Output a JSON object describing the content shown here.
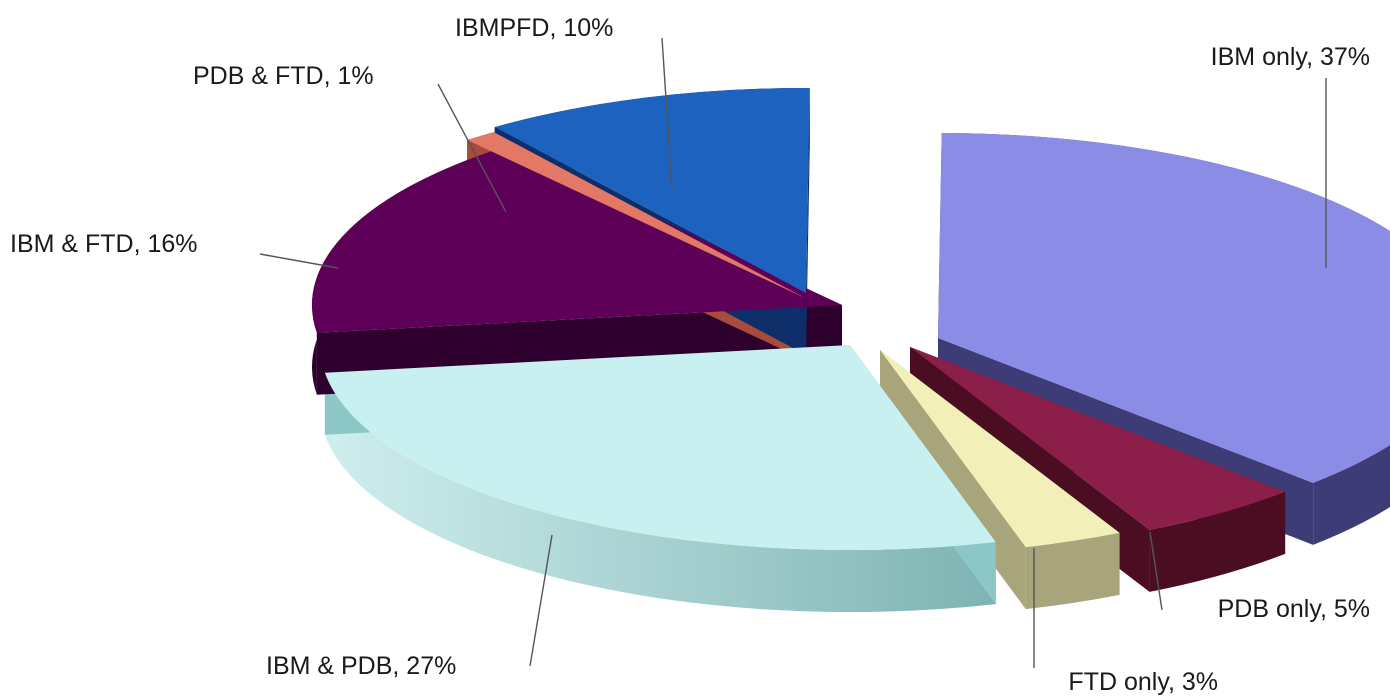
{
  "chart_data": {
    "type": "pie",
    "style": "3d-exploded",
    "title": "",
    "slices": [
      {
        "label": "IBM only",
        "value": 37,
        "color": "#8a8ce6",
        "side": "#3d3c76",
        "text": "IBM only, 37%"
      },
      {
        "label": "PDB only",
        "value": 5,
        "color": "#8c1f4a",
        "side": "#4a0d22",
        "text": "PDB only, 5%"
      },
      {
        "label": "FTD only",
        "value": 3,
        "color": "#f2efb8",
        "side": "#a8a57c",
        "text": "FTD only, 3%"
      },
      {
        "label": "IBM & PDB",
        "value": 27,
        "color": "#c8f0f0",
        "side": "#8cc6c6",
        "text": "IBM & PDB, 27%"
      },
      {
        "label": "IBM & FTD",
        "value": 16,
        "color": "#5e0058",
        "side": "#2e002e",
        "text": "IBM & FTD, 16%"
      },
      {
        "label": "PDB & FTD",
        "value": 1,
        "color": "#e27865",
        "side": "#a84a3c",
        "text": "PDB & FTD, 1%"
      },
      {
        "label": "IBMPFD",
        "value": 10,
        "color": "#1e62c0",
        "side": "#0e2e6a",
        "text": "IBMPFD, 10%"
      }
    ]
  }
}
